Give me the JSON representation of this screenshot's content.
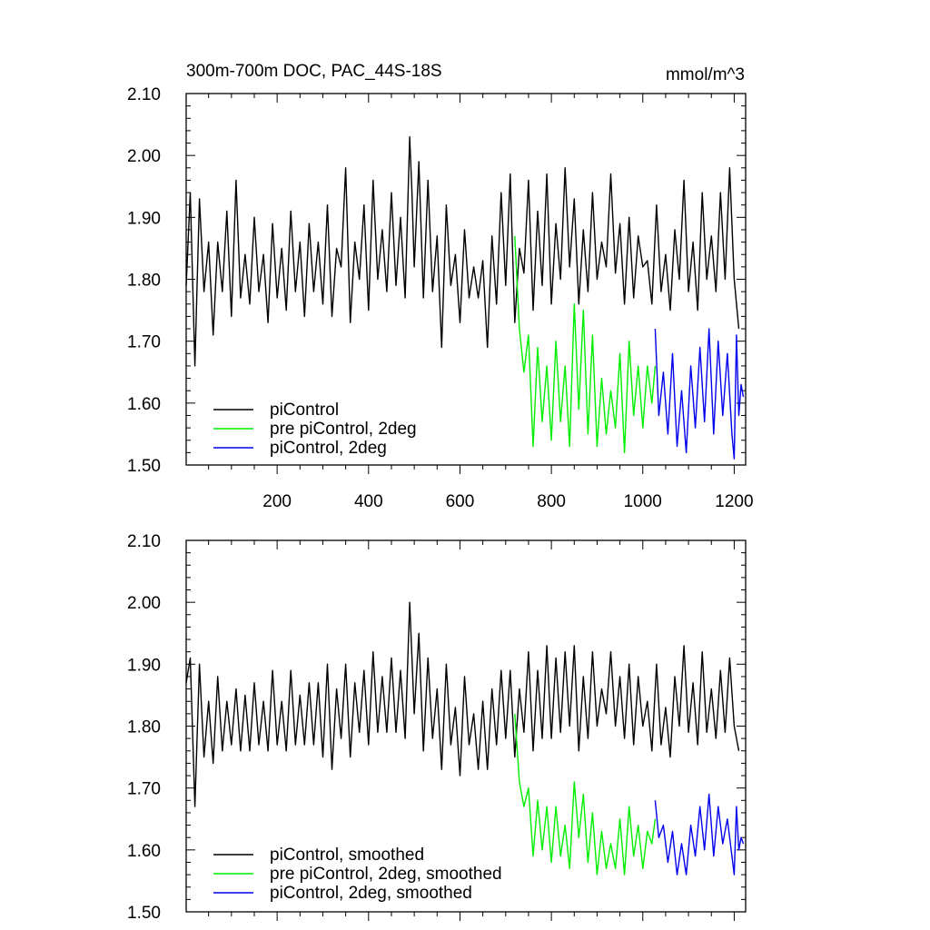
{
  "chart_data": [
    {
      "type": "line",
      "title": "300m-700m DOC, PAC_44S-18S",
      "units": "mmol/m^3",
      "xlim": [
        1,
        1225
      ],
      "ylim": [
        1.5,
        2.1
      ],
      "xticks": [
        200,
        400,
        600,
        800,
        1000,
        1200
      ],
      "xtick_labels": [
        "200",
        "400",
        "600",
        "800",
        "1000",
        "1200"
      ],
      "yticks": [
        1.5,
        1.6,
        1.7,
        1.8,
        1.9,
        2.0,
        2.1
      ],
      "ytick_labels": [
        "1.50",
        "1.60",
        "1.70",
        "1.80",
        "1.90",
        "2.00",
        "2.10"
      ],
      "grid": false,
      "legend": "bottom-left",
      "series": [
        {
          "name": "piControl",
          "color": "#000000",
          "x": [
            1,
            10,
            20,
            30,
            40,
            50,
            60,
            70,
            80,
            90,
            100,
            110,
            120,
            130,
            140,
            150,
            160,
            170,
            180,
            190,
            200,
            210,
            220,
            230,
            240,
            250,
            260,
            270,
            280,
            290,
            300,
            310,
            320,
            330,
            340,
            350,
            360,
            370,
            380,
            390,
            400,
            410,
            420,
            430,
            440,
            450,
            460,
            470,
            480,
            490,
            495,
            500,
            510,
            520,
            530,
            540,
            550,
            560,
            570,
            580,
            590,
            600,
            610,
            620,
            630,
            640,
            650,
            660,
            670,
            680,
            690,
            700,
            710,
            720,
            730,
            740,
            750,
            760,
            770,
            780,
            790,
            800,
            810,
            820,
            830,
            840,
            850,
            860,
            870,
            880,
            890,
            900,
            910,
            920,
            930,
            940,
            950,
            960,
            970,
            980,
            990,
            1000,
            1010,
            1020,
            1030,
            1040,
            1050,
            1060,
            1070,
            1080,
            1090,
            1100,
            1110,
            1120,
            1130,
            1140,
            1150,
            1160,
            1170,
            1180,
            1190,
            1200,
            1210
          ],
          "values": [
            1.79,
            1.94,
            1.66,
            1.93,
            1.78,
            1.86,
            1.71,
            1.86,
            1.78,
            1.91,
            1.74,
            1.96,
            1.77,
            1.84,
            1.76,
            1.9,
            1.78,
            1.84,
            1.73,
            1.89,
            1.77,
            1.85,
            1.75,
            1.91,
            1.78,
            1.86,
            1.74,
            1.89,
            1.78,
            1.86,
            1.76,
            1.92,
            1.74,
            1.85,
            1.82,
            1.98,
            1.73,
            1.86,
            1.8,
            1.92,
            1.75,
            1.96,
            1.8,
            1.88,
            1.78,
            1.94,
            1.79,
            1.9,
            1.77,
            2.03,
            1.94,
            1.82,
            1.99,
            1.77,
            1.96,
            1.78,
            1.87,
            1.69,
            1.92,
            1.79,
            1.84,
            1.73,
            1.88,
            1.77,
            1.82,
            1.77,
            1.83,
            1.69,
            1.87,
            1.76,
            1.94,
            1.79,
            1.97,
            1.73,
            1.85,
            1.81,
            1.96,
            1.75,
            1.91,
            1.79,
            1.97,
            1.76,
            1.89,
            1.8,
            1.98,
            1.82,
            1.93,
            1.76,
            1.88,
            1.78,
            1.94,
            1.8,
            1.86,
            1.82,
            1.97,
            1.81,
            1.89,
            1.76,
            1.9,
            1.77,
            1.87,
            1.82,
            1.83,
            1.76,
            1.92,
            1.78,
            1.84,
            1.75,
            1.88,
            1.8,
            1.96,
            1.78,
            1.86,
            1.75,
            1.94,
            1.8,
            1.87,
            1.78,
            1.94,
            1.8,
            1.98,
            1.8,
            1.72
          ]
        },
        {
          "name": "pre piControl, 2deg",
          "color": "#00ee00",
          "x": [
            720,
            730,
            740,
            750,
            760,
            770,
            780,
            790,
            800,
            810,
            820,
            830,
            840,
            850,
            860,
            870,
            880,
            890,
            900,
            910,
            920,
            930,
            940,
            950,
            960,
            970,
            980,
            990,
            1000,
            1010,
            1020,
            1027
          ],
          "values": [
            1.87,
            1.72,
            1.65,
            1.71,
            1.53,
            1.69,
            1.57,
            1.66,
            1.54,
            1.7,
            1.57,
            1.66,
            1.53,
            1.76,
            1.59,
            1.75,
            1.55,
            1.71,
            1.53,
            1.64,
            1.55,
            1.62,
            1.56,
            1.68,
            1.52,
            1.7,
            1.58,
            1.66,
            1.56,
            1.66,
            1.6,
            1.66
          ]
        },
        {
          "name": "piControl, 2deg",
          "color": "#0000ee",
          "x": [
            1027,
            1035,
            1045,
            1055,
            1065,
            1075,
            1085,
            1095,
            1105,
            1115,
            1125,
            1135,
            1145,
            1155,
            1165,
            1175,
            1185,
            1195,
            1200,
            1205,
            1210,
            1215,
            1220
          ],
          "values": [
            1.72,
            1.58,
            1.65,
            1.55,
            1.68,
            1.53,
            1.62,
            1.52,
            1.66,
            1.56,
            1.69,
            1.57,
            1.72,
            1.55,
            1.7,
            1.58,
            1.68,
            1.55,
            1.51,
            1.71,
            1.58,
            1.63,
            1.61
          ]
        }
      ]
    },
    {
      "type": "line",
      "title": "",
      "xlim": [
        1,
        1225
      ],
      "ylim": [
        1.5,
        2.1
      ],
      "xticks": [
        200,
        400,
        600,
        800,
        1000,
        1200
      ],
      "yticks": [
        1.5,
        1.6,
        1.7,
        1.8,
        1.9,
        2.0,
        2.1
      ],
      "ytick_labels": [
        "1.50",
        "1.60",
        "1.70",
        "1.80",
        "1.90",
        "2.00",
        "2.10"
      ],
      "grid": false,
      "legend": "bottom-left",
      "series": [
        {
          "name": "piControl, smoothed",
          "color": "#000000",
          "x": [
            1,
            10,
            20,
            30,
            40,
            50,
            60,
            70,
            80,
            90,
            100,
            110,
            120,
            130,
            140,
            150,
            160,
            170,
            180,
            190,
            200,
            210,
            220,
            230,
            240,
            250,
            260,
            270,
            280,
            290,
            300,
            310,
            320,
            330,
            340,
            350,
            360,
            370,
            380,
            390,
            400,
            410,
            420,
            430,
            440,
            450,
            460,
            470,
            480,
            490,
            495,
            500,
            510,
            520,
            530,
            540,
            550,
            560,
            570,
            580,
            590,
            600,
            610,
            620,
            630,
            640,
            650,
            660,
            670,
            680,
            690,
            700,
            710,
            720,
            730,
            740,
            750,
            760,
            770,
            780,
            790,
            800,
            810,
            820,
            830,
            840,
            850,
            860,
            870,
            880,
            890,
            900,
            910,
            920,
            930,
            940,
            950,
            960,
            970,
            980,
            990,
            1000,
            1010,
            1020,
            1030,
            1040,
            1050,
            1060,
            1070,
            1080,
            1090,
            1100,
            1110,
            1120,
            1130,
            1140,
            1150,
            1160,
            1170,
            1180,
            1190,
            1200,
            1210
          ],
          "values": [
            1.87,
            1.91,
            1.67,
            1.9,
            1.75,
            1.84,
            1.74,
            1.88,
            1.76,
            1.84,
            1.77,
            1.86,
            1.76,
            1.85,
            1.76,
            1.87,
            1.77,
            1.84,
            1.76,
            1.89,
            1.77,
            1.84,
            1.76,
            1.89,
            1.77,
            1.85,
            1.77,
            1.87,
            1.77,
            1.87,
            1.75,
            1.9,
            1.73,
            1.86,
            1.78,
            1.9,
            1.75,
            1.87,
            1.79,
            1.89,
            1.77,
            1.92,
            1.79,
            1.88,
            1.79,
            1.91,
            1.79,
            1.89,
            1.78,
            2.0,
            1.91,
            1.82,
            1.95,
            1.76,
            1.91,
            1.78,
            1.86,
            1.73,
            1.9,
            1.77,
            1.83,
            1.72,
            1.88,
            1.77,
            1.82,
            1.73,
            1.84,
            1.73,
            1.86,
            1.77,
            1.89,
            1.78,
            1.89,
            1.75,
            1.86,
            1.79,
            1.92,
            1.76,
            1.89,
            1.78,
            1.93,
            1.78,
            1.91,
            1.79,
            1.92,
            1.8,
            1.93,
            1.76,
            1.88,
            1.78,
            1.92,
            1.8,
            1.86,
            1.82,
            1.92,
            1.8,
            1.88,
            1.78,
            1.9,
            1.77,
            1.88,
            1.8,
            1.84,
            1.76,
            1.9,
            1.77,
            1.83,
            1.75,
            1.88,
            1.8,
            1.93,
            1.79,
            1.87,
            1.77,
            1.92,
            1.79,
            1.86,
            1.78,
            1.89,
            1.79,
            1.91,
            1.8,
            1.76
          ]
        },
        {
          "name": "pre piControl, 2deg, smoothed",
          "color": "#00ee00",
          "x": [
            720,
            730,
            740,
            750,
            760,
            770,
            780,
            790,
            800,
            810,
            820,
            830,
            840,
            850,
            860,
            870,
            880,
            890,
            900,
            910,
            920,
            930,
            940,
            950,
            960,
            970,
            980,
            990,
            1000,
            1010,
            1020,
            1027
          ],
          "values": [
            1.82,
            1.71,
            1.67,
            1.7,
            1.59,
            1.68,
            1.6,
            1.67,
            1.58,
            1.67,
            1.59,
            1.64,
            1.57,
            1.71,
            1.62,
            1.69,
            1.58,
            1.66,
            1.56,
            1.63,
            1.57,
            1.61,
            1.57,
            1.65,
            1.56,
            1.67,
            1.59,
            1.64,
            1.57,
            1.63,
            1.61,
            1.65
          ]
        },
        {
          "name": "piControl, 2deg, smoothed",
          "color": "#0000ee",
          "x": [
            1027,
            1035,
            1045,
            1055,
            1065,
            1075,
            1085,
            1095,
            1105,
            1115,
            1125,
            1135,
            1145,
            1155,
            1165,
            1175,
            1185,
            1195,
            1200,
            1205,
            1210,
            1215,
            1220
          ],
          "values": [
            1.68,
            1.62,
            1.64,
            1.58,
            1.63,
            1.56,
            1.61,
            1.56,
            1.64,
            1.59,
            1.67,
            1.6,
            1.69,
            1.59,
            1.67,
            1.61,
            1.65,
            1.59,
            1.56,
            1.67,
            1.6,
            1.62,
            1.61
          ]
        }
      ]
    }
  ]
}
